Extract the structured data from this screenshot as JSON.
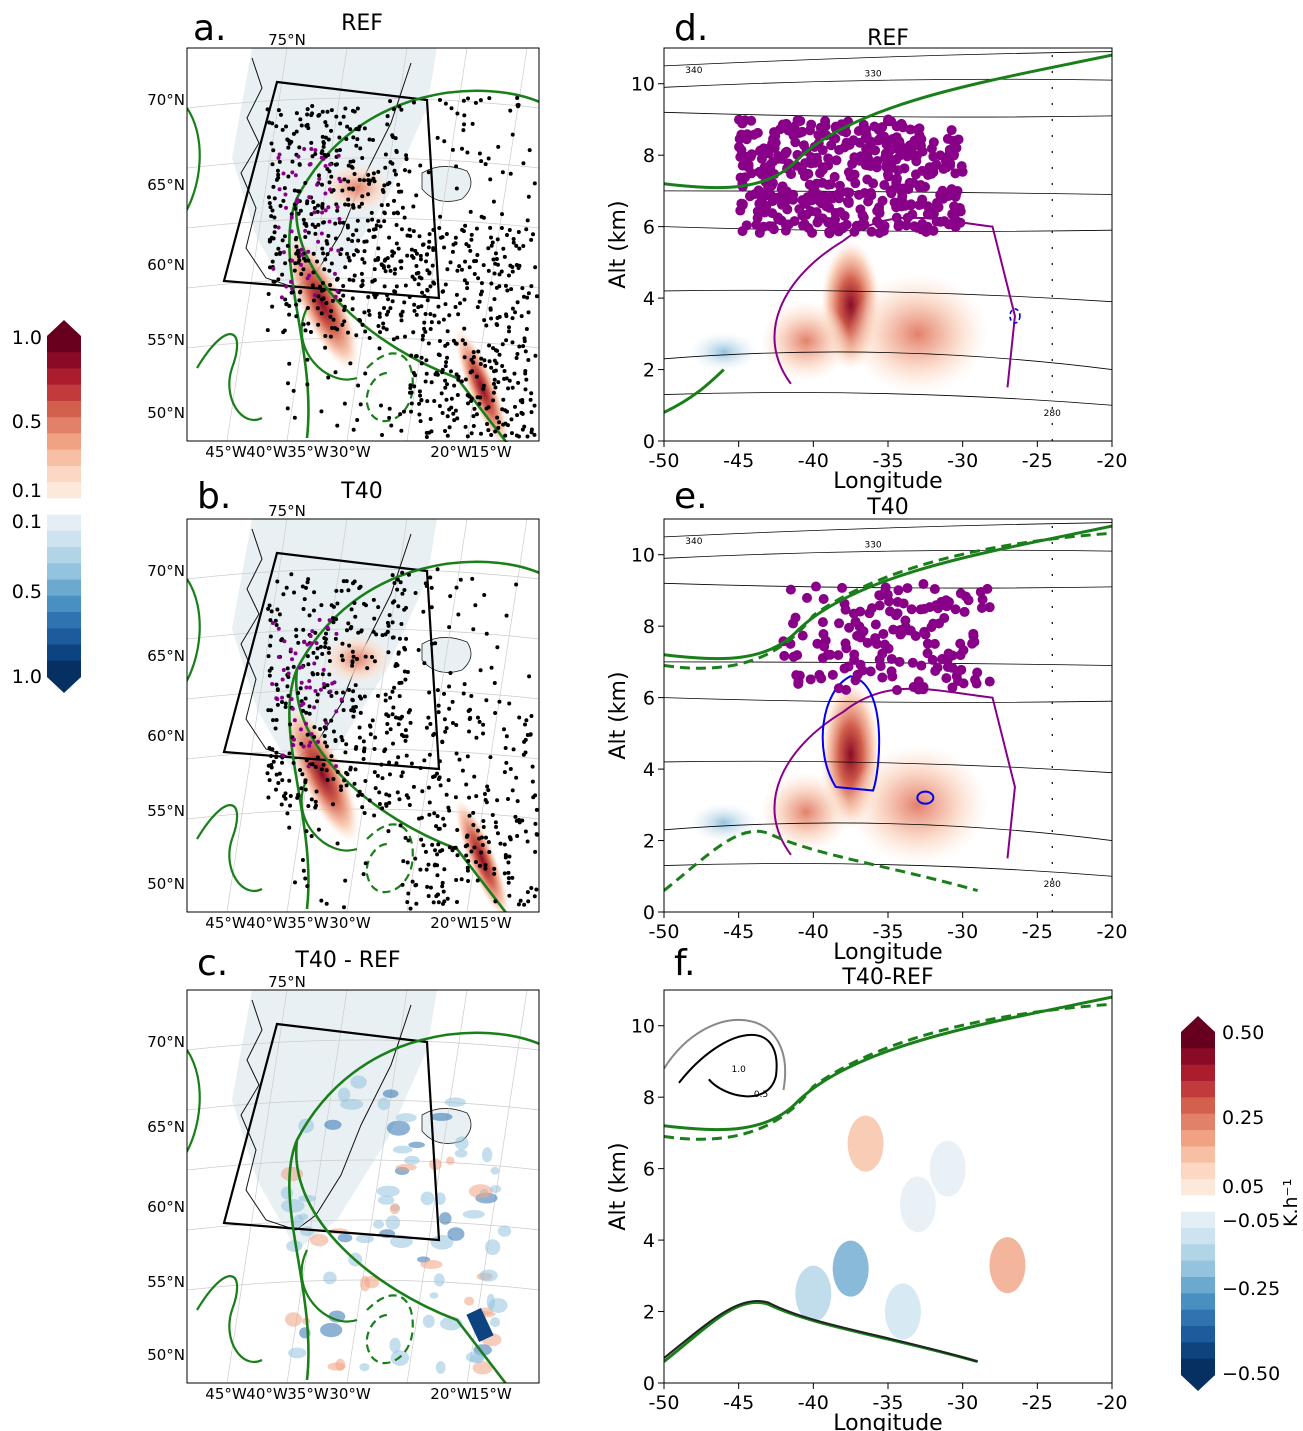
{
  "panels": [
    {
      "letter": "a.",
      "title": "REF"
    },
    {
      "letter": "b.",
      "title": "T40"
    },
    {
      "letter": "c.",
      "title": "T40 - REF"
    },
    {
      "letter": "d.",
      "title": "REF"
    },
    {
      "letter": "e.",
      "title": "T40"
    },
    {
      "letter": "f.",
      "title": "T40-REF"
    }
  ],
  "map_axes": {
    "top_label": "75°N",
    "lat_labels": [
      "70°N",
      "65°N",
      "60°N",
      "55°N",
      "50°N"
    ],
    "lon_labels": [
      "45°W",
      "40°W",
      "35°W",
      "30°W",
      "20°W",
      "15°W"
    ]
  },
  "section_axes": {
    "xlabel": "Longitude",
    "ylabel": "Alt (km)",
    "xticks": [
      "-50",
      "-45",
      "-40",
      "-35",
      "-30",
      "-25",
      "-20"
    ],
    "yticks": [
      "0",
      "2",
      "4",
      "6",
      "8",
      "10"
    ],
    "xlim": [
      -50,
      -20
    ],
    "ylim": [
      0,
      11
    ]
  },
  "contour_labels": {
    "theta_upper": "340",
    "theta_lower": "330",
    "theta_bottom": "280",
    "diff_pos": "1.0",
    "diff_neg": "0.5"
  },
  "colorbar_left": {
    "ticks": [
      "1.0",
      "0.5",
      "0.1",
      "0.1",
      "0.5",
      "1.0"
    ],
    "colors": [
      "#67001f",
      "#8a0b25",
      "#ab1c2d",
      "#c13b3c",
      "#d2604d",
      "#e3806a",
      "#f0a283",
      "#f7bfa3",
      "#fbd7c4",
      "#fde8dc",
      "#ffffff",
      "#e4eef5",
      "#cde3ef",
      "#b2d4e7",
      "#93c3de",
      "#6ba9cf",
      "#4a8fc2",
      "#3073b1",
      "#1e5b9c",
      "#0d437f",
      "#053061"
    ]
  },
  "colorbar_right": {
    "ticks": [
      "0.50",
      "0.25",
      "0.05",
      "−0.05",
      "−0.25",
      "−0.50"
    ],
    "label": "K.h⁻¹",
    "colors": [
      "#67001f",
      "#8a0b25",
      "#ab1c2d",
      "#c13b3c",
      "#d2604d",
      "#e3806a",
      "#f0a283",
      "#f7bfa3",
      "#fbd7c4",
      "#fde8dc",
      "#ffffff",
      "#e4eef5",
      "#cde3ef",
      "#b2d4e7",
      "#93c3de",
      "#6ba9cf",
      "#4a8fc2",
      "#3073b1",
      "#1e5b9c",
      "#0d437f",
      "#053061"
    ]
  },
  "colors": {
    "front": "#1a7f1a",
    "purple": "#880088",
    "blue": "#0000ee",
    "land": "#e8f0f4"
  }
}
